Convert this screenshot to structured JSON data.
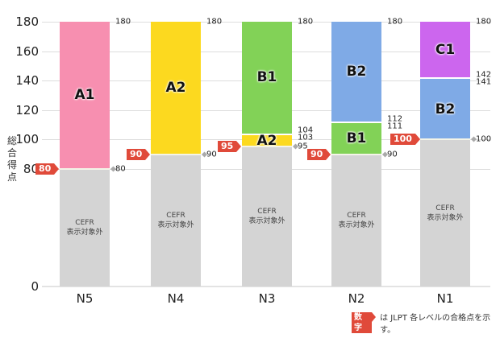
{
  "chart_data": {
    "type": "bar",
    "subtype": "stacked-range",
    "ylabel": "総合得点",
    "ylim": [
      0,
      180
    ],
    "yticks": [
      0,
      80,
      100,
      120,
      140,
      160,
      180
    ],
    "grid": true,
    "categories": [
      "N5",
      "N4",
      "N3",
      "N2",
      "N1"
    ],
    "colors": {
      "A1": "#f78fb0",
      "A2": "#fcd91f",
      "B1": "#82d257",
      "B2": "#7faae6",
      "C1": "#cc66ee",
      "none": "#d4d4d4",
      "pass_badge": "#e04a3a"
    },
    "bars": [
      {
        "level": "N5",
        "pass": "80",
        "segments": [
          {
            "label": "CEFR\n表示対象外",
            "type": "none",
            "from": 0,
            "to": 80
          },
          {
            "label": "A1",
            "type": "A1",
            "from": 80,
            "to": 180
          }
        ],
        "end_labels": [
          {
            "v": 180,
            "t": "180"
          },
          {
            "v": 80,
            "t": "80"
          }
        ]
      },
      {
        "level": "N4",
        "pass": "90",
        "segments": [
          {
            "label": "CEFR\n表示対象外",
            "type": "none",
            "from": 0,
            "to": 90
          },
          {
            "label": "A2",
            "type": "A2",
            "from": 90,
            "to": 180
          }
        ],
        "end_labels": [
          {
            "v": 180,
            "t": "180"
          },
          {
            "v": 90,
            "t": "90"
          }
        ]
      },
      {
        "level": "N3",
        "pass": "95",
        "segments": [
          {
            "label": "CEFR\n表示対象外",
            "type": "none",
            "from": 0,
            "to": 95
          },
          {
            "label": "A2",
            "type": "A2",
            "from": 95,
            "to": 103
          },
          {
            "label": "B1",
            "type": "B1",
            "from": 104,
            "to": 180
          }
        ],
        "end_labels": [
          {
            "v": 180,
            "t": "180"
          },
          {
            "v": 106,
            "t": "104"
          },
          {
            "v": 101,
            "t": "103"
          },
          {
            "v": 95,
            "t": "95"
          }
        ]
      },
      {
        "level": "N2",
        "pass": "90",
        "segments": [
          {
            "label": "CEFR\n表示対象外",
            "type": "none",
            "from": 0,
            "to": 90
          },
          {
            "label": "B1",
            "type": "B1",
            "from": 90,
            "to": 111
          },
          {
            "label": "B2",
            "type": "B2",
            "from": 112,
            "to": 180
          }
        ],
        "end_labels": [
          {
            "v": 180,
            "t": "180"
          },
          {
            "v": 114,
            "t": "112"
          },
          {
            "v": 109,
            "t": "111"
          },
          {
            "v": 90,
            "t": "90"
          }
        ]
      },
      {
        "level": "N1",
        "pass": "100",
        "segments": [
          {
            "label": "CEFR\n表示対象外",
            "type": "none",
            "from": 0,
            "to": 100
          },
          {
            "label": "B2",
            "type": "B2",
            "from": 100,
            "to": 141
          },
          {
            "label": "C1",
            "type": "C1",
            "from": 142,
            "to": 180
          }
        ],
        "end_labels": [
          {
            "v": 180,
            "t": "180"
          },
          {
            "v": 144,
            "t": "142"
          },
          {
            "v": 139,
            "t": "141"
          },
          {
            "v": 100,
            "t": "100"
          }
        ]
      }
    ],
    "note": {
      "badge": "数字",
      "text": "は JLPT 各レベルの合格点を示す。"
    }
  }
}
